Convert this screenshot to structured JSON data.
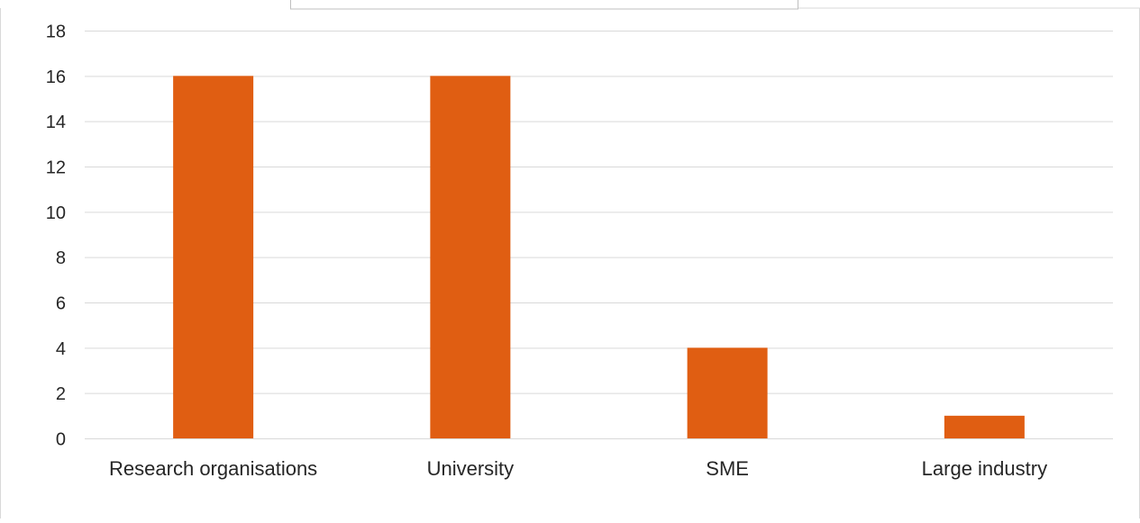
{
  "chart_data": {
    "type": "bar",
    "categories": [
      "Research organisations",
      "University",
      "SME",
      "Large industry"
    ],
    "values": [
      16,
      16,
      4,
      1
    ],
    "title": "",
    "xlabel": "",
    "ylabel": "",
    "ylim": [
      0,
      18
    ],
    "yticks": [
      "0",
      "2",
      "4",
      "6",
      "8",
      "10",
      "12",
      "14",
      "16",
      "18"
    ],
    "grid": true,
    "legend": "none"
  },
  "colors": {
    "bar": "#E05E12",
    "grid": "#D9D9D9",
    "frame": "#D9D9D9",
    "text": "#262626"
  }
}
